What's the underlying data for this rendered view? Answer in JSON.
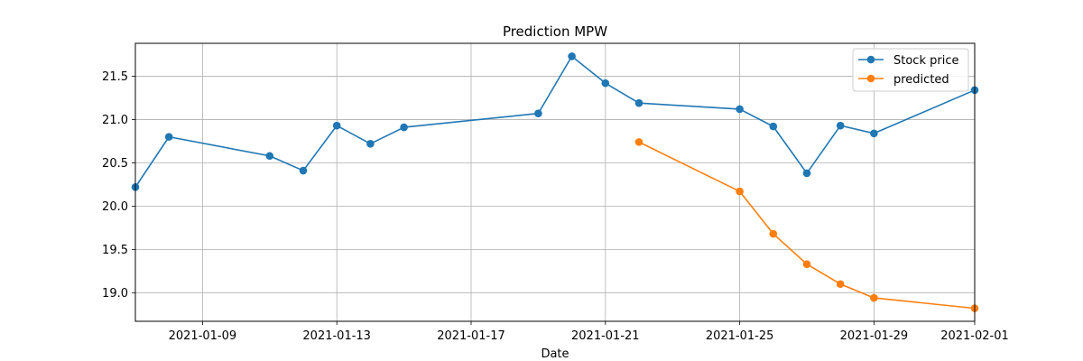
{
  "chart_data": {
    "type": "line",
    "title": "Prediction MPW",
    "xlabel": "Date",
    "ylabel": "",
    "xlim": [
      "2021-01-07",
      "2021-02-01"
    ],
    "ylim": [
      18.67,
      21.88
    ],
    "x_ticks": [
      "2021-01-09",
      "2021-01-13",
      "2021-01-17",
      "2021-01-21",
      "2021-01-25",
      "2021-01-29",
      "2021-02-01"
    ],
    "y_ticks": [
      19.0,
      19.5,
      20.0,
      20.5,
      21.0,
      21.5
    ],
    "y_tick_labels": [
      "19.0",
      "19.5",
      "20.0",
      "20.5",
      "21.0",
      "21.5"
    ],
    "grid": true,
    "legend_position": "top-right",
    "series": [
      {
        "name": "Stock price",
        "color": "#1f77b4",
        "marker": "circle",
        "points": [
          [
            "2021-01-07",
            20.22
          ],
          [
            "2021-01-08",
            20.8
          ],
          [
            "2021-01-11",
            20.58
          ],
          [
            "2021-01-12",
            20.41
          ],
          [
            "2021-01-13",
            20.93
          ],
          [
            "2021-01-14",
            20.72
          ],
          [
            "2021-01-15",
            20.91
          ],
          [
            "2021-01-19",
            21.07
          ],
          [
            "2021-01-20",
            21.73
          ],
          [
            "2021-01-21",
            21.42
          ],
          [
            "2021-01-22",
            21.19
          ],
          [
            "2021-01-25",
            21.12
          ],
          [
            "2021-01-26",
            20.92
          ],
          [
            "2021-01-27",
            20.38
          ],
          [
            "2021-01-28",
            20.93
          ],
          [
            "2021-01-29",
            20.84
          ],
          [
            "2021-02-01",
            21.34
          ]
        ]
      },
      {
        "name": "predicted",
        "color": "#ff7f0e",
        "marker": "circle",
        "points": [
          [
            "2021-01-22",
            20.74
          ],
          [
            "2021-01-25",
            20.17
          ],
          [
            "2021-01-26",
            19.68
          ],
          [
            "2021-01-27",
            19.33
          ],
          [
            "2021-01-28",
            19.1
          ],
          [
            "2021-01-29",
            18.94
          ],
          [
            "2021-02-01",
            18.82
          ]
        ]
      }
    ]
  }
}
